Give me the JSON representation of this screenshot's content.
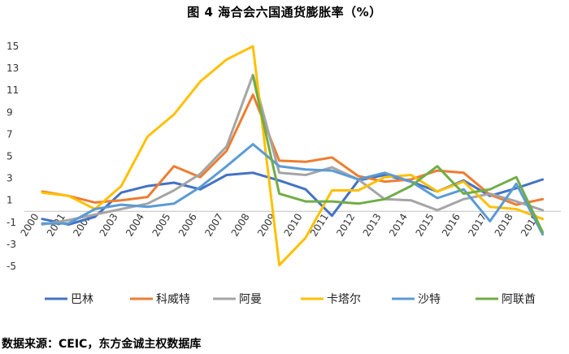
{
  "chart_data": {
    "type": "line",
    "title": "图 4  海合会六国通货膨胀率（%）",
    "categories": [
      "2000",
      "2001",
      "2002",
      "2003",
      "2004",
      "2005",
      "2006",
      "2007",
      "2008",
      "2009",
      "2010",
      "2011",
      "2012",
      "2013",
      "2014",
      "2015",
      "2016",
      "2017",
      "2018",
      "2019"
    ],
    "ylim": [
      -5,
      15
    ],
    "yticks": [
      15,
      13,
      11,
      9,
      7,
      5,
      3,
      1,
      -1,
      -3,
      -5
    ],
    "series": [
      {
        "name": "巴林",
        "color": "#4472C4",
        "values": [
          -0.7,
          -1.2,
          -0.5,
          1.7,
          2.3,
          2.6,
          2.0,
          3.3,
          3.5,
          2.8,
          2.0,
          -0.4,
          2.8,
          3.3,
          2.7,
          1.8,
          2.8,
          1.4,
          2.1,
          2.9
        ]
      },
      {
        "name": "科威特",
        "color": "#ED7D31",
        "values": [
          1.8,
          1.4,
          0.8,
          1.0,
          1.3,
          4.1,
          3.1,
          5.5,
          10.6,
          4.6,
          4.5,
          4.9,
          3.2,
          2.7,
          2.9,
          3.7,
          3.5,
          1.5,
          0.6,
          1.1
        ]
      },
      {
        "name": "阿曼",
        "color": "#A5A5A5",
        "values": [
          -1.2,
          -0.8,
          -0.3,
          0.2,
          0.7,
          1.9,
          3.4,
          5.9,
          12.4,
          3.5,
          3.3,
          4.0,
          2.9,
          1.1,
          1.0,
          0.1,
          1.1,
          1.6,
          0.9,
          0.1
        ]
      },
      {
        "name": "卡塔尔",
        "color": "#FFC000",
        "values": [
          1.7,
          1.4,
          0.2,
          2.3,
          6.8,
          8.8,
          11.8,
          13.8,
          15.0,
          -4.9,
          -2.4,
          1.9,
          1.9,
          3.1,
          3.3,
          1.8,
          2.7,
          0.4,
          0.2,
          -0.7
        ]
      },
      {
        "name": "沙特",
        "color": "#5B9BD5",
        "values": [
          -1.1,
          -1.1,
          0.2,
          0.6,
          0.4,
          0.7,
          2.2,
          4.1,
          6.1,
          4.1,
          3.8,
          3.7,
          2.9,
          3.5,
          2.7,
          1.2,
          2.0,
          -0.9,
          2.5,
          -2.1
        ]
      },
      {
        "name": "阿联酋",
        "color": "#70AD47",
        "values": [
          null,
          null,
          null,
          null,
          null,
          null,
          null,
          null,
          12.3,
          1.6,
          0.9,
          0.9,
          0.7,
          1.1,
          2.3,
          4.1,
          1.6,
          2.0,
          3.1,
          -1.9
        ]
      }
    ]
  },
  "source_text": "数据来源：CEIC，东方金诚主权数据库"
}
